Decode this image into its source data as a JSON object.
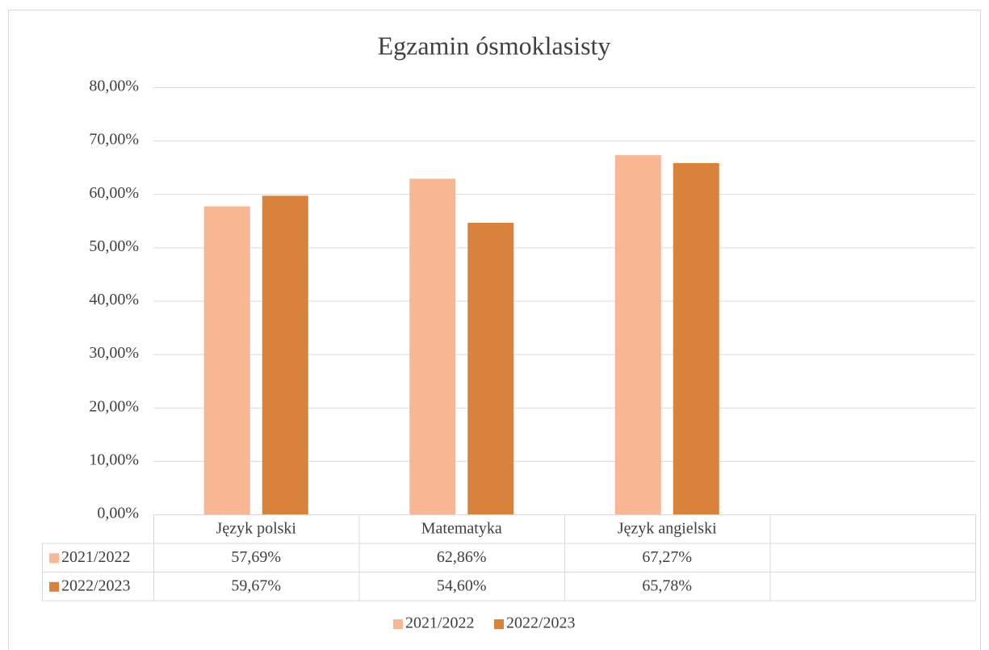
{
  "chart_data": {
    "type": "bar",
    "title": "Egzamin ósmoklasisty",
    "categories": [
      "Język polski",
      "Matematyka",
      "Język angielski",
      null
    ],
    "series": [
      {
        "name": "2021/2022",
        "color": "#f8b693",
        "values": [
          57.69,
          62.86,
          67.27,
          null
        ],
        "value_labels": [
          "57,69%",
          "62,86%",
          "67,27%",
          null
        ]
      },
      {
        "name": "2022/2023",
        "color": "#d9823b",
        "values": [
          59.67,
          54.6,
          65.78,
          null
        ],
        "value_labels": [
          "59,67%",
          "54,60%",
          "65,78%",
          null
        ]
      }
    ],
    "ylim": [
      0,
      80
    ],
    "yticks": [
      {
        "value": 0,
        "label": "0,00%"
      },
      {
        "value": 10,
        "label": "10,00%"
      },
      {
        "value": 20,
        "label": "20,00%"
      },
      {
        "value": 30,
        "label": "30,00%"
      },
      {
        "value": 40,
        "label": "40,00%"
      },
      {
        "value": 50,
        "label": "50,00%"
      },
      {
        "value": 60,
        "label": "60,00%"
      },
      {
        "value": 70,
        "label": "70,00%"
      },
      {
        "value": 80,
        "label": "80,00%"
      }
    ],
    "grid": true,
    "data_table": true,
    "legend": "bottom"
  }
}
